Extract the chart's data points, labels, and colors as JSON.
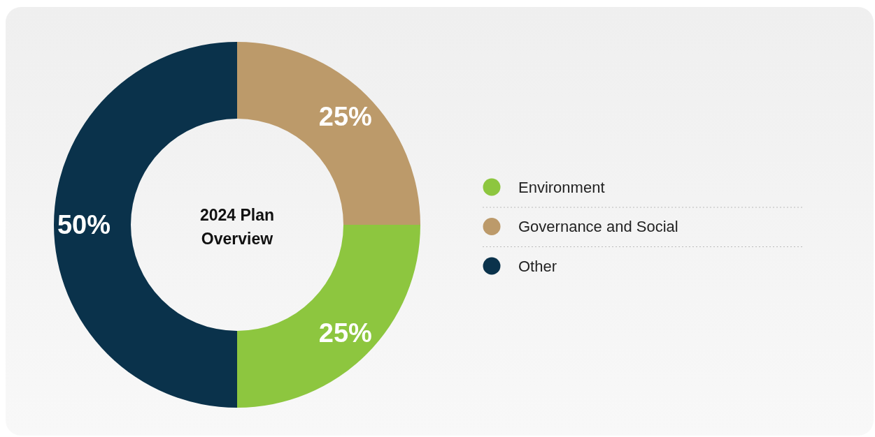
{
  "chart_data": {
    "type": "donut",
    "title": "2024 Plan Overview",
    "categories": [
      "Environment",
      "Governance and Social",
      "Other"
    ],
    "values": [
      25,
      25,
      50
    ],
    "colors": [
      "#8dc63f",
      "#bc9a6a",
      "#0a324b"
    ],
    "value_labels": [
      "25%",
      "25%",
      "50%"
    ],
    "legend": "right"
  }
}
